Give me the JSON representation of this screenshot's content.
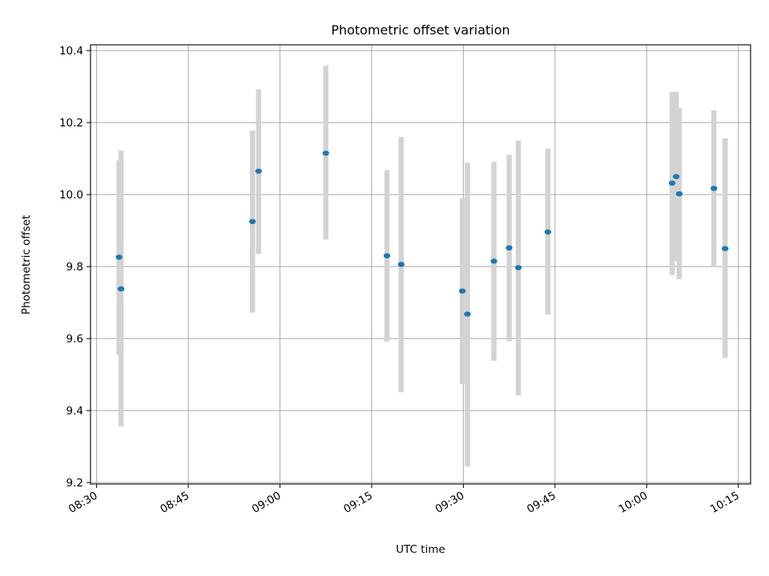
{
  "chart_data": {
    "type": "scatter",
    "title": "Photometric offset variation",
    "xlabel": "UTC time",
    "ylabel": "Photometric offset",
    "x_tick_labels": [
      "08:30",
      "08:45",
      "09:00",
      "09:15",
      "09:30",
      "09:45",
      "10:00",
      "10:15"
    ],
    "y_tick_labels": [
      "9.2",
      "9.4",
      "9.6",
      "9.8",
      "10.0",
      "10.2",
      "10.4"
    ],
    "x_ticks": [
      "08:30",
      "08:45",
      "09:00",
      "09:15",
      "09:30",
      "09:45",
      "10:00",
      "10:15"
    ],
    "y_ticks": [
      9.2,
      9.4,
      9.6,
      9.8,
      10.0,
      10.2,
      10.4
    ],
    "xlim": [
      "08:29",
      "10:17"
    ],
    "ylim": [
      9.196,
      10.416
    ],
    "grid": true,
    "errorbar_color": "#d3d3d3",
    "marker_color": "#1f77b4",
    "points": [
      {
        "time": "08:33:40",
        "y": 9.826,
        "err_low": 9.555,
        "err_high": 10.095
      },
      {
        "time": "08:34:00",
        "y": 9.738,
        "err_low": 9.356,
        "err_high": 10.123
      },
      {
        "time": "08:55:30",
        "y": 9.925,
        "err_low": 9.672,
        "err_high": 10.178
      },
      {
        "time": "08:56:30",
        "y": 10.065,
        "err_low": 9.835,
        "err_high": 10.292
      },
      {
        "time": "09:07:30",
        "y": 10.115,
        "err_low": 9.875,
        "err_high": 10.358
      },
      {
        "time": "09:17:30",
        "y": 9.83,
        "err_low": 9.591,
        "err_high": 10.068
      },
      {
        "time": "09:19:50",
        "y": 9.806,
        "err_low": 9.451,
        "err_high": 10.16
      },
      {
        "time": "09:29:50",
        "y": 9.732,
        "err_low": 9.474,
        "err_high": 9.99
      },
      {
        "time": "09:30:40",
        "y": 9.668,
        "err_low": 9.245,
        "err_high": 10.089
      },
      {
        "time": "09:35:00",
        "y": 9.815,
        "err_low": 9.538,
        "err_high": 10.091
      },
      {
        "time": "09:37:30",
        "y": 9.852,
        "err_low": 9.593,
        "err_high": 10.111
      },
      {
        "time": "09:39:00",
        "y": 9.797,
        "err_low": 9.442,
        "err_high": 10.15
      },
      {
        "time": "09:43:50",
        "y": 9.896,
        "err_low": 9.667,
        "err_high": 10.128
      },
      {
        "time": "10:04:10",
        "y": 10.032,
        "err_low": 9.776,
        "err_high": 10.285
      },
      {
        "time": "10:04:50",
        "y": 10.05,
        "err_low": 9.815,
        "err_high": 10.286
      },
      {
        "time": "10:05:20",
        "y": 10.002,
        "err_low": 9.765,
        "err_high": 10.24
      },
      {
        "time": "10:11:00",
        "y": 10.017,
        "err_low": 9.799,
        "err_high": 10.234
      },
      {
        "time": "10:12:50",
        "y": 9.85,
        "err_low": 9.546,
        "err_high": 10.156
      }
    ]
  }
}
